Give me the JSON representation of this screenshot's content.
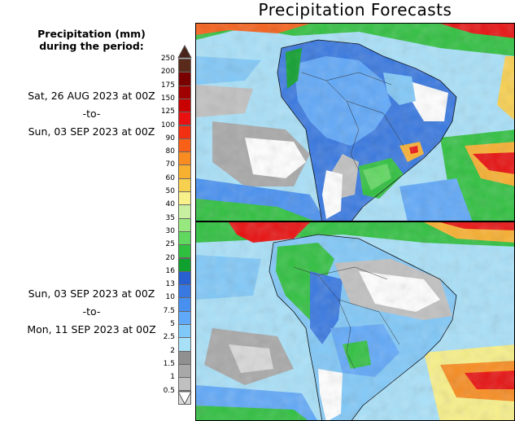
{
  "title": "Precipitation Forecasts",
  "legend": {
    "title_line1": "Precipitation (mm)",
    "title_line2": "during the period:",
    "ticks": [
      "250",
      "200",
      "175",
      "150",
      "125",
      "100",
      "90",
      "80",
      "70",
      "60",
      "50",
      "40",
      "35",
      "30",
      "25",
      "20",
      "16",
      "13",
      "10",
      "7.5",
      "5",
      "2.5",
      "2",
      "1.5",
      "1",
      "0.5"
    ],
    "colors": [
      "#5a2a1a",
      "#7a0000",
      "#a00000",
      "#c80000",
      "#e81010",
      "#f03010",
      "#f86018",
      "#f88c20",
      "#f8b030",
      "#f8d050",
      "#f8f088",
      "#c8f0a0",
      "#98e880",
      "#60d860",
      "#30c040",
      "#10a030",
      "#2860d0",
      "#3878e0",
      "#4890f0",
      "#60a8f8",
      "#80c8f8",
      "#a8e0f8",
      "#909090",
      "#a8a8a8",
      "#c0c0c0",
      "#d8d8d8"
    ],
    "top_arrow_color": "#4a2418"
  },
  "period1": {
    "start": "Sat, 26 AUG 2023 at 00Z",
    "sep": "-to-",
    "end": "Sun, 03 SEP 2023 at 00Z"
  },
  "period2": {
    "start": "Sun, 03 SEP 2023 at 00Z",
    "sep": "-to-",
    "end": "Mon, 11 SEP 2023 at 00Z"
  }
}
